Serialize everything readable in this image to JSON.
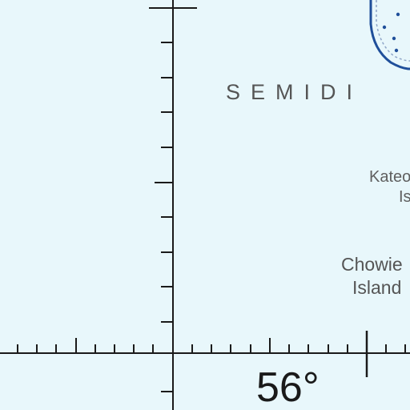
{
  "map": {
    "background_color": "#e8f7fb",
    "grid_color": "#1a1a1a",
    "island_outline_color": "#1f4f9a",
    "labels": {
      "semidi": "SEMIDI",
      "katefragment": "Kateo",
      "isfragment": "Is",
      "chowiee": "Chowie",
      "island": "Island"
    },
    "latitude_label": "56°"
  }
}
